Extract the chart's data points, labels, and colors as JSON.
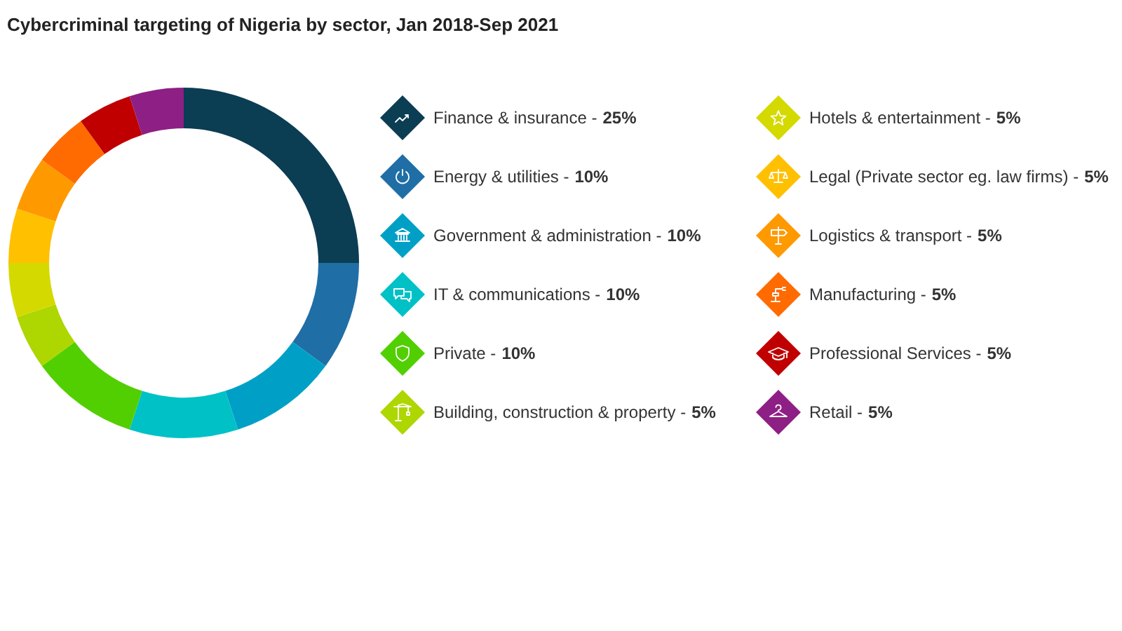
{
  "chart_data": {
    "type": "donut",
    "title": "Cybercriminal targeting of Nigeria by sector, Jan 2018-Sep 2021",
    "categories": [
      "Finance & insurance -",
      "Energy & utilities -",
      "Government & administration -",
      "IT & communications -",
      "Private -",
      "Building, construction & property -",
      "Hotels & entertainment -",
      "Legal (Private sector eg. law firms) -",
      "Logistics & transport -",
      "Manufacturing -",
      "Professional Services -",
      "Retail -"
    ],
    "values": [
      25,
      10,
      10,
      10,
      10,
      5,
      5,
      5,
      5,
      5,
      5,
      5
    ],
    "value_labels": [
      "25%",
      "10%",
      "10%",
      "10%",
      "10%",
      "5%",
      "5%",
      "5%",
      "5%",
      "5%",
      "5%",
      "5%"
    ],
    "colors": [
      "#0b3d53",
      "#206ea6",
      "#00a0c6",
      "#00c1c6",
      "#52cf00",
      "#aed600",
      "#d4d900",
      "#ffc000",
      "#ff9900",
      "#ff6b00",
      "#c00000",
      "#8e1f84"
    ],
    "legend": "right"
  }
}
